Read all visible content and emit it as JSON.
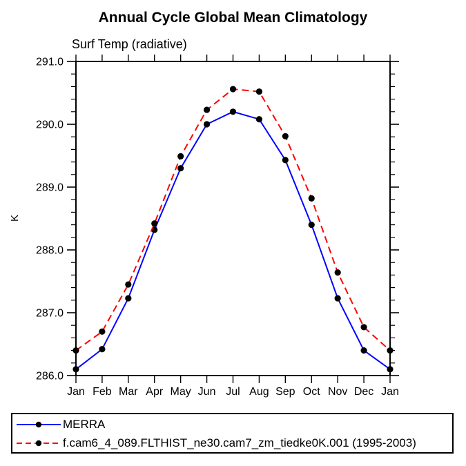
{
  "title": "Annual Cycle Global Mean Climatology",
  "subtitle": "Surf Temp (radiative)",
  "chart_data": {
    "type": "line",
    "ylabel": "K",
    "categories": [
      "Jan",
      "Feb",
      "Mar",
      "Apr",
      "May",
      "Jun",
      "Jul",
      "Aug",
      "Sep",
      "Oct",
      "Nov",
      "Dec",
      "Jan"
    ],
    "series": [
      {
        "name": "MERRA",
        "color": "#0000ff",
        "line_style": "solid",
        "marker": "filled-circle",
        "marker_color": "#000000",
        "values": [
          286.1,
          286.42,
          287.23,
          288.32,
          289.3,
          290.0,
          290.2,
          290.08,
          289.43,
          288.4,
          287.23,
          286.4,
          286.1
        ]
      },
      {
        "name": "f.cam6_4_089.FLTHIST_ne30.cam7_zm_tiedke0K.001 (1995-2003)",
        "color": "#ff0000",
        "line_style": "dashed",
        "marker": "filled-circle",
        "marker_color": "#000000",
        "values": [
          286.4,
          286.7,
          287.45,
          288.42,
          289.49,
          290.23,
          290.56,
          290.52,
          289.81,
          288.82,
          287.64,
          286.77,
          286.4
        ]
      }
    ],
    "ylim": [
      286.0,
      291.0
    ],
    "y_major_ticks": [
      286.0,
      287.0,
      288.0,
      289.0,
      290.0,
      291.0
    ],
    "y_tick_labels": [
      "286.0",
      "287.0",
      "288.0",
      "289.0",
      "290.0",
      "291.0"
    ],
    "y_minor_interval": 0.2,
    "grid": false,
    "legend_position": "bottom-left-box",
    "axis_color": "#000000"
  }
}
